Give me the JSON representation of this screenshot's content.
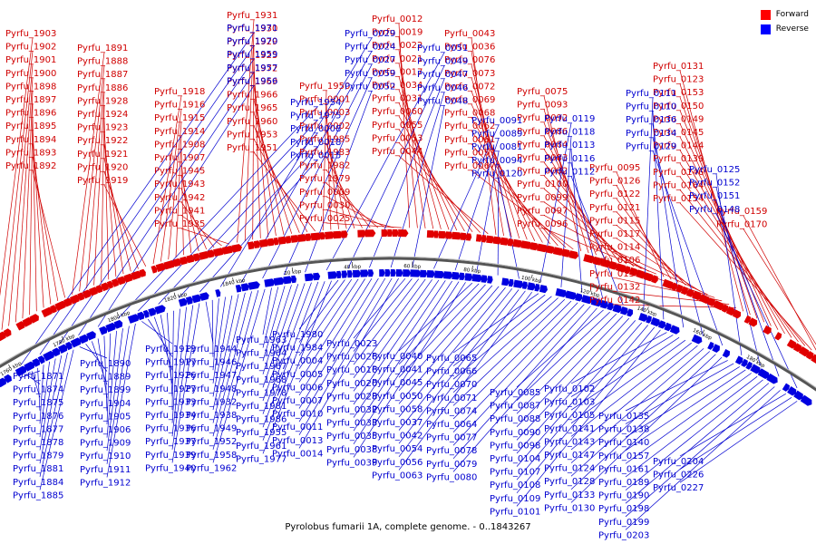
{
  "caption": "Pyrolobus fumarii 1A, complete genome. - 0..1843267",
  "legend": [
    {
      "label": "Forward",
      "color": "#ff0000"
    },
    {
      "label": "Reverse",
      "color": "#0000ff"
    }
  ],
  "colors": {
    "forward": "#e00000",
    "reverse": "#0000e0",
    "backbone": "#888888"
  },
  "ticks": [
    "1760 kbp",
    "1780 kbp",
    "1800 kbp",
    "1820 kbp",
    "1840 kbp",
    "20 kbp",
    "40 kbp",
    "60 kbp",
    "80 kbp",
    "100 kbp",
    "120 kbp",
    "140 kbp",
    "160 kbp",
    "180 kbp"
  ],
  "forward_labels": [
    "Pyrfu_1903",
    "Pyrfu_1902",
    "Pyrfu_1901",
    "Pyrfu_1900",
    "Pyrfu_1898",
    "Pyrfu_1897",
    "Pyrfu_1896",
    "Pyrfu_1895",
    "Pyrfu_1894",
    "Pyrfu_1893",
    "Pyrfu_1892",
    "Pyrfu_1891",
    "Pyrfu_1888",
    "Pyrfu_1887",
    "Pyrfu_1886",
    "Pyrfu_1928",
    "Pyrfu_1924",
    "Pyrfu_1923",
    "Pyrfu_1922",
    "Pyrfu_1921",
    "Pyrfu_1920",
    "Pyrfu_1919",
    "Pyrfu_1918",
    "Pyrfu_1916",
    "Pyrfu_1915",
    "Pyrfu_1914",
    "Pyrfu_1908",
    "Pyrfu_1907",
    "Pyrfu_1945",
    "Pyrfu_1943",
    "Pyrfu_1942",
    "Pyrfu_1941",
    "Pyrfu_1935",
    "Pyrfu_1931",
    "Pyrfu_1930",
    "Pyrfu_1929",
    "Pyrfu_1925",
    "Pyrfu_1972",
    "Pyrfu_1969",
    "Pyrfu_1966",
    "Pyrfu_1965",
    "Pyrfu_1960",
    "Pyrfu_1953",
    "Pyrfu_1951",
    "Pyrfu_1950",
    "Pyrfu_0001",
    "Pyrfu_0003",
    "Pyrfu_0002",
    "Pyrfu_1985",
    "Pyrfu_1983",
    "Pyrfu_1982",
    "Pyrfu_1979",
    "Pyrfu_0009",
    "Pyrfu_0030",
    "Pyrfu_0025",
    "Pyrfu_0012",
    "Pyrfu_0019",
    "Pyrfu_0022",
    "Pyrfu_0021",
    "Pyrfu_0017",
    "Pyrfu_0034",
    "Pyrfu_0031",
    "Pyrfu_0060",
    "Pyrfu_0055",
    "Pyrfu_0053",
    "Pyrfu_0044",
    "Pyrfu_0043",
    "Pyrfu_0036",
    "Pyrfu_0076",
    "Pyrfu_0073",
    "Pyrfu_0072",
    "Pyrfu_0069",
    "Pyrfu_0068",
    "Pyrfu_0062",
    "Pyrfu_0061",
    "Pyrfu_0057",
    "Pyrfu_0067",
    "Pyrfu_0075",
    "Pyrfu_0093",
    "Pyrfu_0092",
    "Pyrfu_0086",
    "Pyrfu_0084",
    "Pyrfu_0083",
    "Pyrfu_0082",
    "Pyrfu_0100",
    "Pyrfu_0099",
    "Pyrfu_0097",
    "Pyrfu_0096",
    "Pyrfu_0095",
    "Pyrfu_0126",
    "Pyrfu_0122",
    "Pyrfu_0121",
    "Pyrfu_0115",
    "Pyrfu_0117",
    "Pyrfu_0114",
    "Pyrfu_0106",
    "Pyrfu_0137",
    "Pyrfu_0132",
    "Pyrfu_0142",
    "Pyrfu_0131",
    "Pyrfu_0123",
    "Pyrfu_0153",
    "Pyrfu_0150",
    "Pyrfu_0149",
    "Pyrfu_0145",
    "Pyrfu_0144",
    "Pyrfu_0139",
    "Pyrfu_0146",
    "Pyrfu_0164",
    "Pyrfu_0154",
    "Pyrfu_0159",
    "Pyrfu_0170"
  ],
  "reverse_labels_top": [
    "Pyrfu_1971",
    "Pyrfu_1970",
    "Pyrfu_1959",
    "Pyrfu_1957",
    "Pyrfu_1956",
    "Pyrfu_1954",
    "Pyrfu_1975",
    "Pyrfu_0008",
    "Pyrfu_0018",
    "Pyrfu_0015",
    "Pyrfu_0029",
    "Pyrfu_0024",
    "Pyrfu_0027",
    "Pyrfu_0059",
    "Pyrfu_0052",
    "Pyrfu_0051",
    "Pyrfu_0049",
    "Pyrfu_0047",
    "Pyrfu_0046",
    "Pyrfu_0048",
    "Pyrfu_0091",
    "Pyrfu_0089",
    "Pyrfu_0081",
    "Pyrfu_0094",
    "Pyrfu_0120",
    "Pyrfu_0119",
    "Pyrfu_0118",
    "Pyrfu_0113",
    "Pyrfu_0116",
    "Pyrfu_0112",
    "Pyrfu_0111",
    "Pyrfu_0110",
    "Pyrfu_0136",
    "Pyrfu_0134",
    "Pyrfu_0129",
    "Pyrfu_0125",
    "Pyrfu_0152",
    "Pyrfu_0151",
    "Pyrfu_0148"
  ],
  "reverse_labels_bottom": [
    "Pyrfu_1871",
    "Pyrfu_1874",
    "Pyrfu_1875",
    "Pyrfu_1876",
    "Pyrfu_1877",
    "Pyrfu_1878",
    "Pyrfu_1879",
    "Pyrfu_1881",
    "Pyrfu_1884",
    "Pyrfu_1885",
    "Pyrfu_1890",
    "Pyrfu_1889",
    "Pyrfu_1899",
    "Pyrfu_1904",
    "Pyrfu_1905",
    "Pyrfu_1906",
    "Pyrfu_1909",
    "Pyrfu_1910",
    "Pyrfu_1911",
    "Pyrfu_1912",
    "Pyrfu_1913",
    "Pyrfu_1917",
    "Pyrfu_1926",
    "Pyrfu_1927",
    "Pyrfu_1933",
    "Pyrfu_1934",
    "Pyrfu_1936",
    "Pyrfu_1937",
    "Pyrfu_1939",
    "Pyrfu_1940",
    "Pyrfu_1944",
    "Pyrfu_1946",
    "Pyrfu_1947",
    "Pyrfu_1948",
    "Pyrfu_1932",
    "Pyrfu_1938",
    "Pyrfu_1949",
    "Pyrfu_1952",
    "Pyrfu_1958",
    "Pyrfu_1962",
    "Pyrfu_1963",
    "Pyrfu_1964",
    "Pyrfu_1967",
    "Pyrfu_1968",
    "Pyrfu_1978",
    "Pyrfu_1981",
    "Pyrfu_1986",
    "Pyrfu_1955",
    "Pyrfu_1961",
    "Pyrfu_1977",
    "Pyrfu_1980",
    "Pyrfu_1984",
    "Pyrfu_0004",
    "Pyrfu_0005",
    "Pyrfu_0006",
    "Pyrfu_0007",
    "Pyrfu_0010",
    "Pyrfu_0011",
    "Pyrfu_0013",
    "Pyrfu_0014",
    "Pyrfu_0023",
    "Pyrfu_0026",
    "Pyrfu_0016",
    "Pyrfu_0020",
    "Pyrfu_0028",
    "Pyrfu_0032",
    "Pyrfu_0033",
    "Pyrfu_0035",
    "Pyrfu_0038",
    "Pyrfu_0039",
    "Pyrfu_0040",
    "Pyrfu_0041",
    "Pyrfu_0045",
    "Pyrfu_0050",
    "Pyrfu_0058",
    "Pyrfu_0037",
    "Pyrfu_0042",
    "Pyrfu_0054",
    "Pyrfu_0056",
    "Pyrfu_0063",
    "Pyrfu_0065",
    "Pyrfu_0066",
    "Pyrfu_0070",
    "Pyrfu_0071",
    "Pyrfu_0074",
    "Pyrfu_0064",
    "Pyrfu_0077",
    "Pyrfu_0078",
    "Pyrfu_0079",
    "Pyrfu_0080",
    "Pyrfu_0085",
    "Pyrfu_0087",
    "Pyrfu_0088",
    "Pyrfu_0090",
    "Pyrfu_0098",
    "Pyrfu_0104",
    "Pyrfu_0107",
    "Pyrfu_0108",
    "Pyrfu_0109",
    "Pyrfu_0101",
    "Pyrfu_0102",
    "Pyrfu_0103",
    "Pyrfu_0105",
    "Pyrfu_0141",
    "Pyrfu_0143",
    "Pyrfu_0147",
    "Pyrfu_0124",
    "Pyrfu_0128",
    "Pyrfu_0133",
    "Pyrfu_0130",
    "Pyrfu_0135",
    "Pyrfu_0138",
    "Pyrfu_0140",
    "Pyrfu_0157",
    "Pyrfu_0161",
    "Pyrfu_0189",
    "Pyrfu_0190",
    "Pyrfu_0198",
    "Pyrfu_0199",
    "Pyrfu_0203",
    "Pyrfu_0204",
    "Pyrfu_0226",
    "Pyrfu_0227"
  ]
}
